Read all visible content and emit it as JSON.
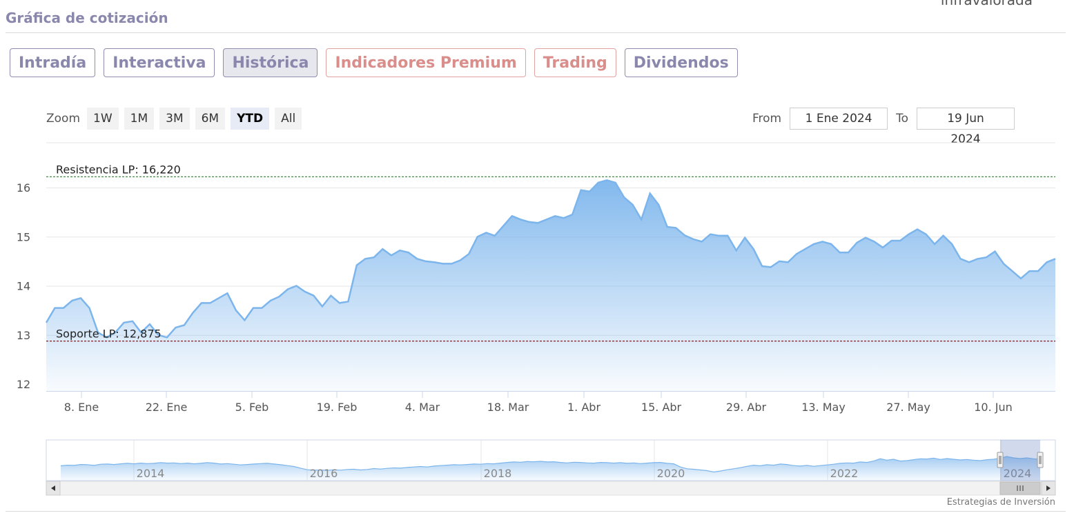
{
  "page": {
    "title": "Gráfica de cotización",
    "top_cut_text": "infravalorada",
    "credits": "Estrategias de Inversión"
  },
  "tabs": [
    {
      "label": "Intradía",
      "style": "normal"
    },
    {
      "label": "Interactiva",
      "style": "normal"
    },
    {
      "label": "Histórica",
      "style": "active"
    },
    {
      "label": "Indicadores Premium",
      "style": "premium"
    },
    {
      "label": "Trading",
      "style": "premium"
    },
    {
      "label": "Dividendos",
      "style": "normal"
    }
  ],
  "zoom": {
    "label": "Zoom",
    "buttons": [
      "1W",
      "1M",
      "3M",
      "6M",
      "YTD",
      "All"
    ],
    "selected": "YTD"
  },
  "range": {
    "from_label": "From",
    "from_value": "1 Ene 2024",
    "to_label": "To",
    "to_value": "19 Jun 2024"
  },
  "colors": {
    "line": "#7cb5ec",
    "resistance": "#2e7d32",
    "support": "#8b1a1a",
    "tab_text": "#8a87ad",
    "premium_text": "#d98e8b"
  },
  "chart_data": {
    "type": "area",
    "ylim": [
      12,
      16.4
    ],
    "yticks": [
      12,
      13,
      14,
      15,
      16
    ],
    "xticks": [
      "8. Ene",
      "22. Ene",
      "5. Feb",
      "19. Feb",
      "4. Mar",
      "18. Mar",
      "1. Abr",
      "15. Abr",
      "29. Abr",
      "13. May",
      "27. May",
      "10. Jun"
    ],
    "annotations": [
      {
        "label": "Resistencia LP: 16,220",
        "value": 16.22,
        "kind": "resistance"
      },
      {
        "label": "Soporte LP: 12,875",
        "value": 12.875,
        "kind": "support"
      }
    ],
    "series": [
      {
        "values": [
          13.25,
          13.55,
          13.55,
          13.7,
          13.75,
          13.55,
          13.05,
          12.95,
          13.05,
          13.25,
          13.28,
          13.05,
          13.22,
          13.0,
          12.95,
          13.15,
          13.2,
          13.45,
          13.65,
          13.65,
          13.75,
          13.85,
          13.5,
          13.3,
          13.55,
          13.55,
          13.7,
          13.78,
          13.93,
          14.0,
          13.88,
          13.8,
          13.58,
          13.8,
          13.65,
          13.68,
          14.42,
          14.55,
          14.58,
          14.75,
          14.62,
          14.72,
          14.68,
          14.55,
          14.5,
          14.48,
          14.45,
          14.45,
          14.52,
          14.65,
          15.0,
          15.08,
          15.02,
          15.22,
          15.42,
          15.35,
          15.3,
          15.28,
          15.35,
          15.42,
          15.38,
          15.45,
          15.95,
          15.92,
          16.1,
          16.15,
          16.1,
          15.8,
          15.65,
          15.35,
          15.88,
          15.65,
          15.2,
          15.18,
          15.03,
          14.95,
          14.9,
          15.05,
          15.02,
          15.02,
          14.72,
          14.98,
          14.75,
          14.4,
          14.38,
          14.5,
          14.48,
          14.65,
          14.75,
          14.85,
          14.9,
          14.85,
          14.68,
          14.68,
          14.88,
          14.98,
          14.9,
          14.78,
          14.92,
          14.92,
          15.05,
          15.15,
          15.05,
          14.85,
          15.02,
          14.85,
          14.55,
          14.48,
          14.55,
          14.58,
          14.7,
          14.45,
          14.3,
          14.15,
          14.3,
          14.3,
          14.48,
          14.55
        ]
      }
    ],
    "navigator": {
      "xticks": [
        "2014",
        "2016",
        "2018",
        "2020",
        "2022",
        "2024"
      ],
      "values": [
        11.5,
        11.8,
        11.7,
        12.1,
        12.0,
        11.7,
        12.2,
        12.3,
        12.1,
        12.4,
        12.6,
        12.4,
        12.7,
        12.5,
        12.6,
        12.9,
        12.7,
        12.8,
        12.5,
        12.7,
        12.4,
        12.6,
        12.9,
        12.7,
        12.3,
        12.5,
        12.2,
        11.9,
        12.1,
        12.3,
        12.5,
        12.6,
        12.3,
        12.0,
        11.6,
        11.2,
        10.5,
        9.8,
        9.6,
        9.7,
        9.5,
        9.8,
        9.6,
        9.9,
        10.0,
        9.7,
        9.9,
        10.3,
        10.1,
        10.4,
        10.6,
        10.5,
        10.8,
        11.0,
        11.2,
        11.0,
        11.4,
        11.6,
        11.8,
        12.0,
        11.9,
        12.1,
        12.3,
        12.2,
        12.5,
        12.4,
        12.7,
        13.0,
        13.2,
        13.1,
        13.4,
        13.3,
        13.5,
        13.2,
        13.3,
        13.0,
        12.8,
        13.1,
        13.0,
        12.8,
        12.7,
        13.0,
        12.9,
        12.7,
        12.9,
        12.6,
        12.8,
        12.5,
        12.7,
        12.9,
        13.0,
        12.6,
        12.4,
        11.0,
        10.2,
        10.0,
        9.7,
        9.4,
        8.8,
        9.2,
        9.8,
        10.2,
        10.7,
        11.3,
        11.8,
        11.5,
        12.0,
        11.8,
        12.3,
        12.1,
        11.6,
        11.4,
        11.7,
        11.3,
        11.6,
        11.9,
        12.2,
        12.6,
        12.8,
        12.7,
        13.2,
        13.0,
        13.6,
        14.6,
        14.0,
        14.4,
        13.6,
        13.8,
        14.2,
        14.6,
        14.5,
        14.9,
        14.3,
        14.7,
        14.4,
        14.1,
        14.3,
        14.0,
        13.8,
        14.2,
        14.4,
        14.9,
        15.6,
        15.0,
        14.7,
        15.0,
        14.6,
        14.4
      ]
    }
  }
}
